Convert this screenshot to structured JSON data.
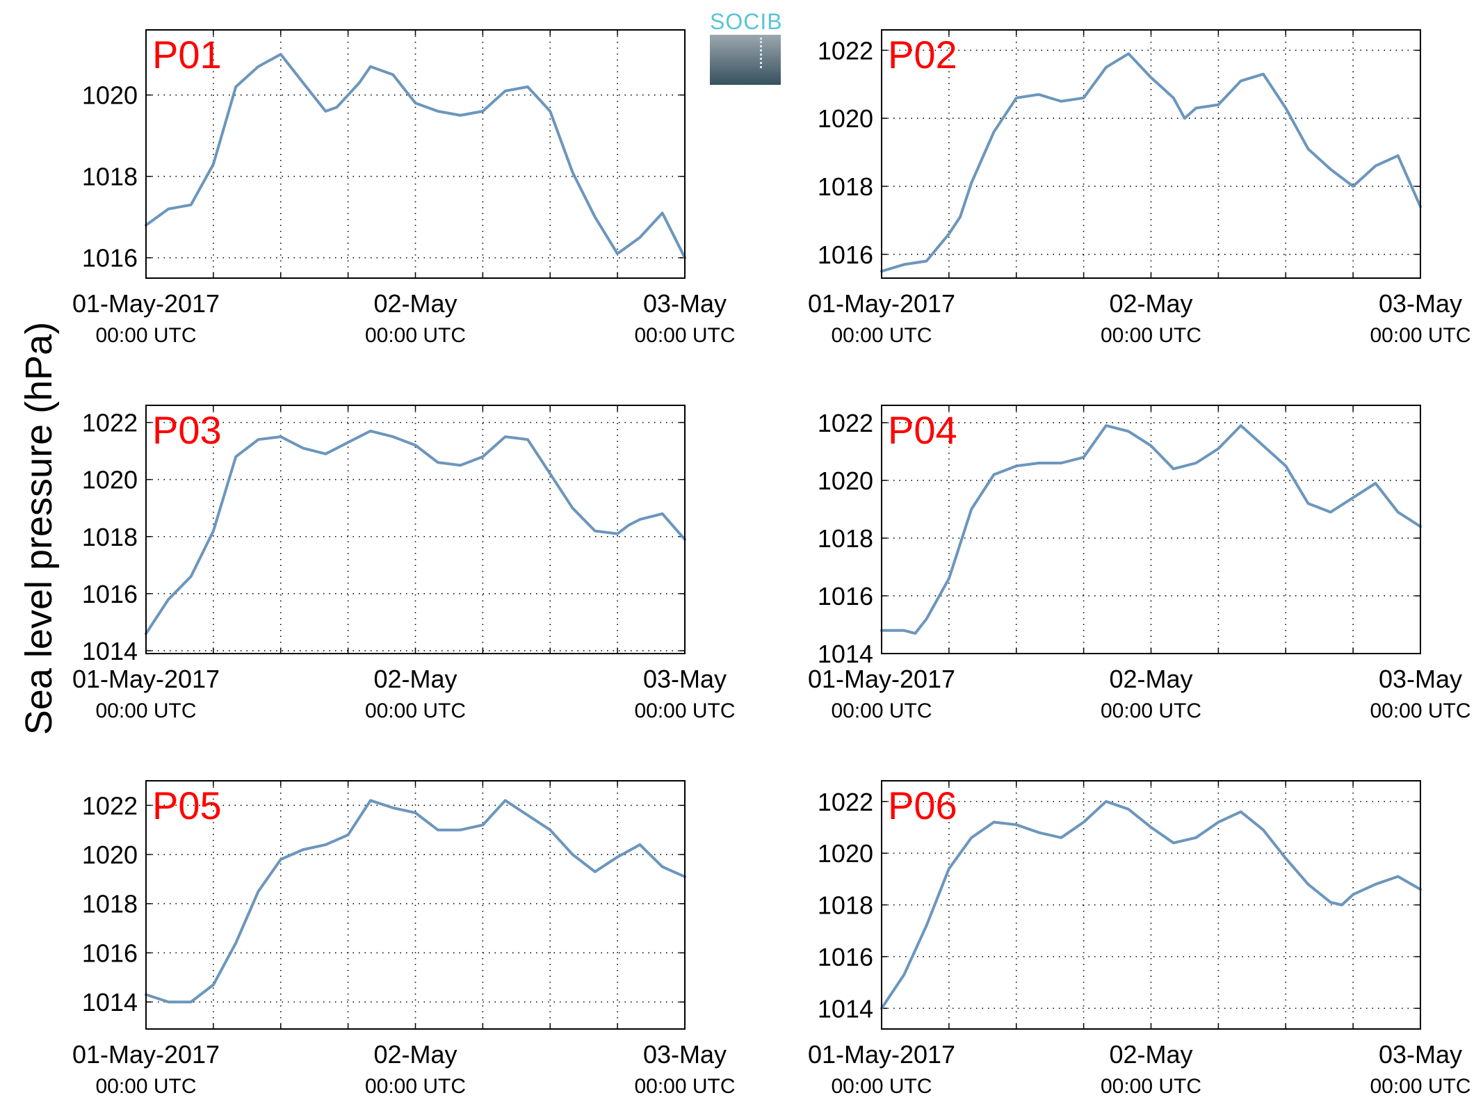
{
  "figure": {
    "ylabel": "Sea level pressure (hPa)",
    "logo_text": "SOCIB",
    "colors": {
      "line": "#6c96bc",
      "panel_label": "#ff0000",
      "axes": "#000000",
      "grid": "#000000"
    }
  },
  "chart_data": [
    {
      "type": "line",
      "panel_label": "P01",
      "x_start": "2017-05-01T00:00Z",
      "x_end": "2017-05-03T00:00Z",
      "xticks": [
        {
          "line1": "01-May-2017",
          "line2": "00:00 UTC"
        },
        {
          "line1": "02-May",
          "line2": "00:00 UTC"
        },
        {
          "line1": "03-May",
          "line2": "00:00 UTC"
        }
      ],
      "ylim": [
        1015.5,
        1021.6
      ],
      "yticks": [
        "1016",
        "1018",
        "1020"
      ],
      "grid": true,
      "x_hours": [
        0,
        2,
        4,
        6,
        8,
        10,
        12,
        14,
        16,
        17,
        19,
        20,
        22,
        24,
        26,
        28,
        30,
        32,
        34,
        36,
        38,
        40,
        42,
        44,
        46,
        48
      ],
      "y": [
        1016.8,
        1017.2,
        1017.3,
        1018.3,
        1020.2,
        1020.7,
        1021.0,
        1020.3,
        1019.6,
        1019.7,
        1020.3,
        1020.7,
        1020.5,
        1019.8,
        1019.6,
        1019.5,
        1019.6,
        1020.1,
        1020.2,
        1019.6,
        1018.1,
        1017.0,
        1016.1,
        1016.5,
        1017.1,
        1016.0
      ]
    },
    {
      "type": "line",
      "panel_label": "P02",
      "x_start": "2017-05-01T00:00Z",
      "x_end": "2017-05-03T00:00Z",
      "xticks": [
        {
          "line1": "01-May-2017",
          "line2": "00:00 UTC"
        },
        {
          "line1": "02-May",
          "line2": "00:00 UTC"
        },
        {
          "line1": "03-May",
          "line2": "00:00 UTC"
        }
      ],
      "ylim": [
        1015.3,
        1022.6
      ],
      "yticks": [
        "1016",
        "1018",
        "1020",
        "1022"
      ],
      "grid": true,
      "x_hours": [
        0,
        2,
        4,
        6,
        7,
        8,
        10,
        12,
        14,
        16,
        18,
        20,
        22,
        24,
        26,
        27,
        28,
        30,
        32,
        34,
        36,
        38,
        40,
        42,
        43,
        44,
        46,
        48
      ],
      "y": [
        1015.5,
        1015.7,
        1015.8,
        1016.6,
        1017.1,
        1018.1,
        1019.6,
        1020.6,
        1020.7,
        1020.5,
        1020.6,
        1021.5,
        1021.9,
        1021.2,
        1020.6,
        1020.0,
        1020.3,
        1020.4,
        1021.1,
        1021.3,
        1020.3,
        1019.1,
        1018.5,
        1018.0,
        1018.3,
        1018.6,
        1018.9,
        1017.4
      ]
    },
    {
      "type": "line",
      "panel_label": "P03",
      "x_start": "2017-05-01T00:00Z",
      "x_end": "2017-05-03T00:00Z",
      "xticks": [
        {
          "line1": "01-May-2017",
          "line2": "00:00 UTC"
        },
        {
          "line1": "02-May",
          "line2": "00:00 UTC"
        },
        {
          "line1": "03-May",
          "line2": "00:00 UTC"
        }
      ],
      "ylim": [
        1013.9,
        1022.6
      ],
      "yticks": [
        "1014",
        "1016",
        "1018",
        "1020",
        "1022"
      ],
      "grid": true,
      "x_hours": [
        0,
        2,
        4,
        6,
        8,
        10,
        12,
        14,
        16,
        18,
        20,
        22,
        24,
        26,
        28,
        30,
        32,
        34,
        36,
        38,
        40,
        42,
        43,
        44,
        46,
        48
      ],
      "y": [
        1014.6,
        1015.8,
        1016.6,
        1018.2,
        1020.8,
        1021.4,
        1021.5,
        1021.1,
        1020.9,
        1021.3,
        1021.7,
        1021.5,
        1021.2,
        1020.6,
        1020.5,
        1020.8,
        1021.5,
        1021.4,
        1020.2,
        1019.0,
        1018.2,
        1018.1,
        1018.4,
        1018.6,
        1018.8,
        1017.9
      ]
    },
    {
      "type": "line",
      "panel_label": "P04",
      "x_start": "2017-05-01T00:00Z",
      "x_end": "2017-05-03T00:00Z",
      "xticks": [
        {
          "line1": "01-May-2017",
          "line2": "00:00 UTC"
        },
        {
          "line1": "02-May",
          "line2": "00:00 UTC"
        },
        {
          "line1": "03-May",
          "line2": "00:00 UTC"
        }
      ],
      "ylim": [
        1014.0,
        1022.6
      ],
      "yticks": [
        "1014",
        "1016",
        "1018",
        "1020",
        "1022"
      ],
      "grid": true,
      "x_hours": [
        0,
        2,
        3,
        4,
        6,
        8,
        10,
        12,
        14,
        16,
        18,
        20,
        22,
        24,
        26,
        28,
        30,
        32,
        34,
        36,
        38,
        40,
        42,
        44,
        46,
        48
      ],
      "y": [
        1014.8,
        1014.8,
        1014.7,
        1015.2,
        1016.6,
        1019.0,
        1020.2,
        1020.5,
        1020.6,
        1020.6,
        1020.8,
        1021.9,
        1021.7,
        1021.2,
        1020.4,
        1020.6,
        1021.1,
        1021.9,
        1021.2,
        1020.5,
        1019.2,
        1018.9,
        1019.4,
        1019.9,
        1018.9,
        1018.4
      ]
    },
    {
      "type": "line",
      "panel_label": "P05",
      "x_start": "2017-05-01T00:00Z",
      "x_end": "2017-05-03T00:00Z",
      "xticks": [
        {
          "line1": "01-May-2017",
          "line2": "00:00 UTC"
        },
        {
          "line1": "02-May",
          "line2": "00:00 UTC"
        },
        {
          "line1": "03-May",
          "line2": "00:00 UTC"
        }
      ],
      "ylim": [
        1012.9,
        1023.0
      ],
      "yticks": [
        "1014",
        "1016",
        "1018",
        "1020",
        "1022"
      ],
      "grid": true,
      "x_hours": [
        0,
        2,
        4,
        6,
        8,
        10,
        12,
        14,
        16,
        18,
        20,
        22,
        24,
        26,
        28,
        30,
        32,
        34,
        36,
        38,
        40,
        42,
        44,
        46,
        48
      ],
      "y": [
        1014.3,
        1014.0,
        1014.0,
        1014.7,
        1016.4,
        1018.5,
        1019.8,
        1020.2,
        1020.4,
        1020.8,
        1022.2,
        1021.9,
        1021.7,
        1021.0,
        1021.0,
        1021.2,
        1022.2,
        1021.6,
        1021.0,
        1020.0,
        1019.3,
        1019.9,
        1020.4,
        1019.5,
        1019.1
      ]
    },
    {
      "type": "line",
      "panel_label": "P06",
      "x_start": "2017-05-01T00:00Z",
      "x_end": "2017-05-03T00:00Z",
      "xticks": [
        {
          "line1": "01-May-2017",
          "line2": "00:00 UTC"
        },
        {
          "line1": "02-May",
          "line2": "00:00 UTC"
        },
        {
          "line1": "03-May",
          "line2": "00:00 UTC"
        }
      ],
      "ylim": [
        1013.2,
        1022.8
      ],
      "yticks": [
        "1014",
        "1016",
        "1018",
        "1020",
        "1022"
      ],
      "grid": true,
      "x_hours": [
        0,
        2,
        4,
        6,
        8,
        10,
        12,
        14,
        16,
        18,
        20,
        22,
        24,
        26,
        28,
        30,
        32,
        34,
        36,
        38,
        40,
        41,
        42,
        44,
        46,
        48
      ],
      "y": [
        1014.0,
        1015.3,
        1017.2,
        1019.4,
        1020.6,
        1021.2,
        1021.1,
        1020.8,
        1020.6,
        1021.2,
        1022.0,
        1021.7,
        1021.0,
        1020.4,
        1020.6,
        1021.2,
        1021.6,
        1020.9,
        1019.8,
        1018.8,
        1018.1,
        1018.0,
        1018.4,
        1018.8,
        1019.1,
        1018.6
      ]
    }
  ]
}
